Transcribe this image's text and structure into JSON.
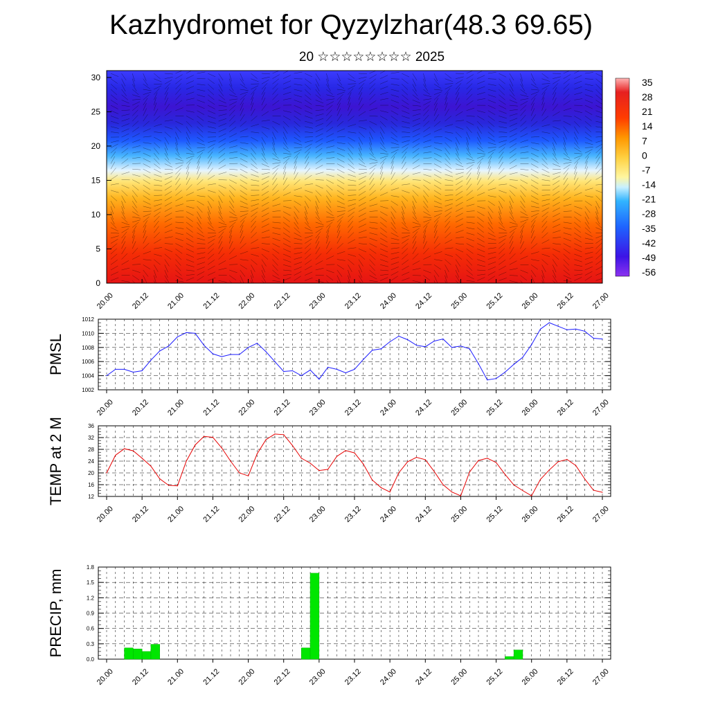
{
  "title": "Kazhydromet for Qyzylzhar(48.3 69.65)",
  "subtitle": "20 ☆☆☆☆☆☆☆☆ 2025",
  "x_tick_labels": [
    "20.00",
    "20.12",
    "21.00",
    "21.12",
    "22.00",
    "22.12",
    "23.00",
    "23.12",
    "24.00",
    "24.12",
    "25.00",
    "25.12",
    "26.00",
    "26.12",
    "27.00"
  ],
  "colors": {
    "pmsl_line": "#1a1aff",
    "temp_line": "#e60000",
    "precip_bar": "#00e600",
    "precip_bar_edge": "#00b400"
  },
  "chart_data": [
    {
      "type": "heatmap",
      "name": "cross-section",
      "xlabel": "",
      "ylabel": "",
      "x_range": [
        0,
        14
      ],
      "ylim": [
        0,
        31
      ],
      "y_ticks": [
        0,
        5,
        10,
        15,
        20,
        25,
        30
      ],
      "colorbar": {
        "ticks": [
          35,
          28,
          21,
          14,
          7,
          0,
          -7,
          -14,
          -21,
          -28,
          -35,
          -42,
          -49,
          -56
        ],
        "range": [
          -63,
          42
        ]
      },
      "overlay": "wind vectors"
    },
    {
      "type": "line",
      "name": "pmsl",
      "ylabel": "PMSL",
      "ylim": [
        1002,
        1012
      ],
      "y_ticks": [
        1002,
        1004,
        1006,
        1008,
        1010,
        1012
      ],
      "grid": true,
      "values": [
        1004.0,
        1004.9,
        1004.9,
        1004.5,
        1004.7,
        1006.2,
        1007.5,
        1008.2,
        1009.5,
        1010.1,
        1010.0,
        1008.3,
        1007.1,
        1006.7,
        1007.0,
        1007.0,
        1008.0,
        1008.6,
        1007.4,
        1006.0,
        1004.6,
        1004.7,
        1004.0,
        1004.8,
        1003.5,
        1005.2,
        1004.9,
        1004.4,
        1004.9,
        1006.3,
        1007.6,
        1007.8,
        1008.8,
        1009.6,
        1009.1,
        1008.3,
        1008.1,
        1008.9,
        1009.2,
        1008.0,
        1008.2,
        1007.8,
        1005.7,
        1003.4,
        1003.6,
        1004.5,
        1005.6,
        1006.6,
        1008.4,
        1010.6,
        1011.5,
        1011.0,
        1010.5,
        1010.6,
        1010.3,
        1009.3,
        1009.2
      ],
      "x_step_hours": 3
    },
    {
      "type": "line",
      "name": "temp",
      "ylabel": "TEMP at 2 M",
      "ylim": [
        12,
        36
      ],
      "y_ticks": [
        12,
        16,
        20,
        24,
        28,
        32,
        36
      ],
      "grid": true,
      "values": [
        20.0,
        26.0,
        28.2,
        27.5,
        25.0,
        22.3,
        18.0,
        15.8,
        15.6,
        24.0,
        29.5,
        32.4,
        32.1,
        28.5,
        24.0,
        20.0,
        19.0,
        26.5,
        31.3,
        33.2,
        33.0,
        29.3,
        25.0,
        23.3,
        20.8,
        21.2,
        25.6,
        27.6,
        26.8,
        23.0,
        17.6,
        15.0,
        13.5,
        20.0,
        23.8,
        25.3,
        24.5,
        20.5,
        16.0,
        13.5,
        12.2,
        20.3,
        24.2,
        25.0,
        23.5,
        19.5,
        15.9,
        14.0,
        12.2,
        17.8,
        21.0,
        23.8,
        24.6,
        22.5,
        18.0,
        14.1,
        13.4
      ],
      "x_step_hours": 3
    },
    {
      "type": "bar",
      "name": "precip",
      "ylabel": "PRECIP, mm",
      "ylim": [
        0,
        1.8
      ],
      "y_ticks": [
        0.0,
        0.3,
        0.6,
        0.9,
        1.2,
        1.5,
        1.8
      ],
      "grid": true,
      "values": [
        0,
        0,
        0,
        0.22,
        0.2,
        0.15,
        0.29,
        0,
        0,
        0,
        0,
        0,
        0,
        0,
        0,
        0,
        0,
        0,
        0,
        0,
        0,
        0,
        0,
        0.22,
        1.68,
        0,
        0,
        0,
        0,
        0,
        0,
        0,
        0,
        0,
        0,
        0,
        0,
        0,
        0,
        0,
        0,
        0,
        0,
        0,
        0,
        0,
        0.05,
        0.18,
        0,
        0,
        0,
        0,
        0,
        0,
        0,
        0
      ],
      "x_step_hours": 3
    }
  ]
}
